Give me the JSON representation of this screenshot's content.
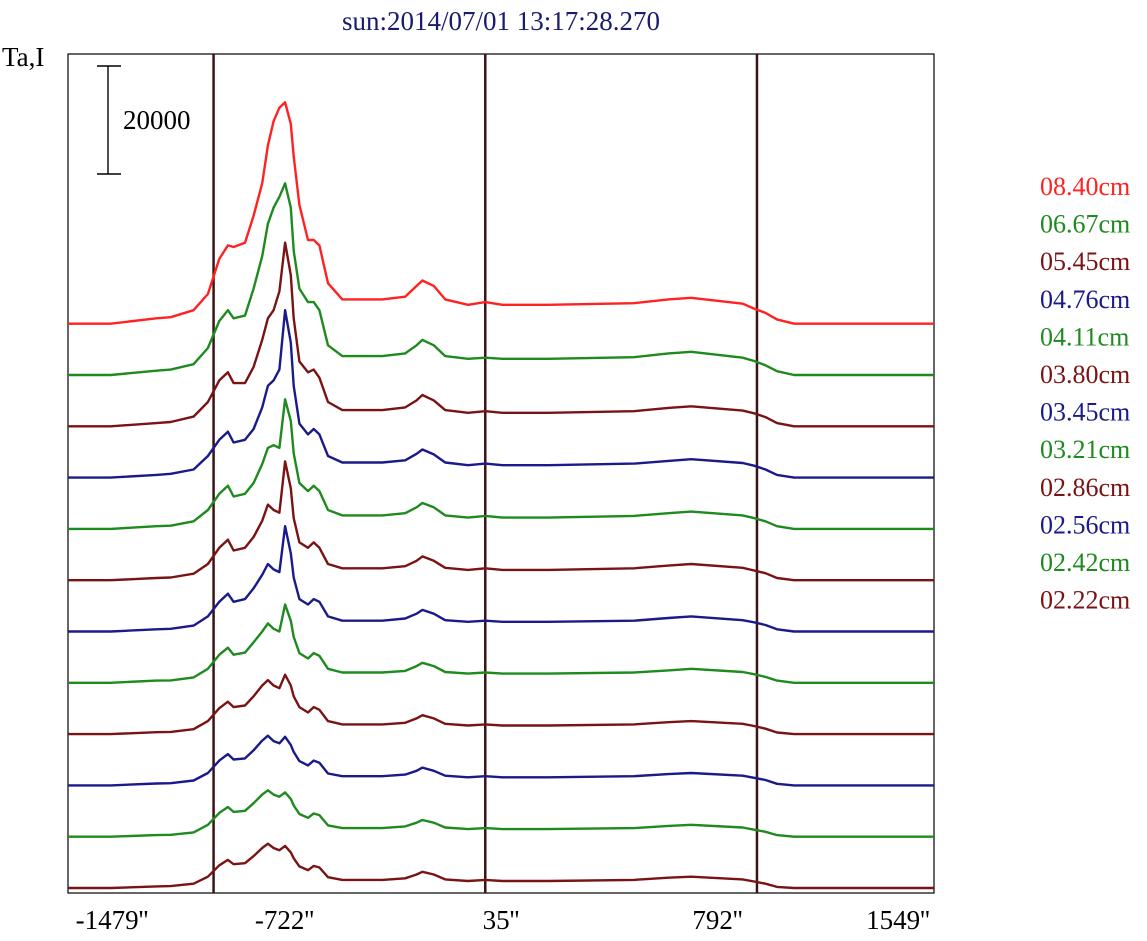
{
  "chart_data": {
    "type": "line",
    "title": "sun:2014/07/01 13:17:28.270",
    "ylabel": "Ta,I",
    "xlabel": "",
    "x_ticks": [
      "-1479''",
      "-722''",
      "35''",
      "792''",
      "1549''"
    ],
    "x_tick_values": [
      -1479,
      -722,
      35,
      792,
      1549
    ],
    "xlim": [
      -1479,
      1549
    ],
    "scale_bar_label": "20000",
    "scale_bar_value": 20000,
    "vertical_markers": [
      -970,
      -20,
      930
    ],
    "stack_offset": 6200,
    "ylim": [
      0,
      95000
    ],
    "series": [
      {
        "name": "08.40cm",
        "color": "#ff2222",
        "level": 11,
        "x": [
          -1479,
          -1330,
          -1170,
          -1120,
          -1040,
          -990,
          -950,
          -920,
          -900,
          -860,
          -830,
          -800,
          -780,
          -760,
          -740,
          -720,
          -700,
          -690,
          -670,
          -640,
          -620,
          -600,
          -570,
          -520,
          -470,
          -380,
          -300,
          -260,
          -240,
          -200,
          -160,
          -80,
          -20,
          40,
          200,
          500,
          620,
          700,
          880,
          920,
          960,
          1000,
          1060,
          1150,
          1549
        ],
        "y": [
          0,
          0,
          1000,
          1200,
          2500,
          5500,
          12000,
          14500,
          14200,
          15000,
          20000,
          26000,
          33000,
          37500,
          40000,
          41000,
          37000,
          31000,
          22000,
          15500,
          15500,
          14500,
          7500,
          4500,
          4500,
          4500,
          5000,
          7000,
          8000,
          7000,
          4500,
          3500,
          4000,
          3500,
          3500,
          3800,
          4500,
          4800,
          3700,
          2800,
          2000,
          800,
          0,
          0,
          0
        ]
      },
      {
        "name": "06.67cm",
        "color": "#1f8a1f",
        "level": 10,
        "x": [
          -1479,
          -1330,
          -1170,
          -1120,
          -1040,
          -990,
          -950,
          -920,
          -900,
          -860,
          -830,
          -800,
          -780,
          -760,
          -740,
          -720,
          -700,
          -690,
          -670,
          -640,
          -620,
          -600,
          -570,
          -520,
          -470,
          -380,
          -300,
          -260,
          -240,
          -200,
          -160,
          -80,
          -20,
          40,
          200,
          500,
          620,
          700,
          880,
          920,
          960,
          1000,
          1060,
          1150,
          1549
        ],
        "y": [
          0,
          0,
          800,
          1000,
          2000,
          5000,
          10000,
          12000,
          10500,
          11000,
          16000,
          22000,
          28000,
          31000,
          33000,
          35500,
          31000,
          23000,
          16000,
          13500,
          13500,
          12000,
          5500,
          3500,
          3500,
          3500,
          4000,
          5500,
          6500,
          5500,
          3500,
          3000,
          3200,
          3000,
          3000,
          3300,
          4000,
          4300,
          3200,
          2600,
          1800,
          700,
          0,
          0,
          0
        ]
      },
      {
        "name": "05.45cm",
        "color": "#7a1414",
        "level": 9,
        "x": [
          -1479,
          -1330,
          -1170,
          -1120,
          -1040,
          -990,
          -950,
          -920,
          -900,
          -860,
          -830,
          -800,
          -780,
          -760,
          -740,
          -720,
          -700,
          -690,
          -670,
          -640,
          -620,
          -600,
          -570,
          -520,
          -470,
          -380,
          -300,
          -260,
          -240,
          -200,
          -160,
          -80,
          -20,
          40,
          200,
          500,
          620,
          700,
          880,
          920,
          960,
          1000,
          1060,
          1150,
          1549
        ],
        "y": [
          0,
          0,
          600,
          800,
          1800,
          4500,
          8500,
          10000,
          8000,
          8000,
          11000,
          16000,
          20000,
          21500,
          25000,
          34000,
          28000,
          20000,
          12000,
          10000,
          10500,
          9000,
          4500,
          3000,
          3000,
          3000,
          3500,
          4800,
          5800,
          4800,
          3000,
          2500,
          2800,
          2500,
          2500,
          2800,
          3400,
          3700,
          2900,
          2400,
          1700,
          600,
          0,
          0,
          0
        ]
      },
      {
        "name": "04.76cm",
        "color": "#1a1a8a",
        "level": 8,
        "x": [
          -1479,
          -1330,
          -1170,
          -1120,
          -1040,
          -990,
          -950,
          -920,
          -900,
          -860,
          -830,
          -800,
          -780,
          -760,
          -740,
          -720,
          -700,
          -690,
          -670,
          -640,
          -620,
          -600,
          -570,
          -520,
          -470,
          -380,
          -300,
          -260,
          -240,
          -200,
          -160,
          -80,
          -20,
          40,
          200,
          500,
          620,
          700,
          880,
          920,
          960,
          1000,
          1060,
          1150,
          1549
        ],
        "y": [
          0,
          0,
          500,
          700,
          1500,
          4000,
          7000,
          8500,
          6500,
          7000,
          9000,
          13000,
          17000,
          18000,
          20000,
          31000,
          25000,
          17000,
          10000,
          8000,
          9000,
          8000,
          4000,
          2800,
          2800,
          2800,
          3200,
          4400,
          5200,
          4300,
          2800,
          2300,
          2600,
          2300,
          2300,
          2600,
          3100,
          3400,
          2700,
          2200,
          1500,
          500,
          0,
          0,
          0
        ]
      },
      {
        "name": "04.11cm",
        "color": "#1f8a1f",
        "level": 7,
        "x": [
          -1479,
          -1330,
          -1170,
          -1120,
          -1040,
          -990,
          -950,
          -920,
          -900,
          -860,
          -830,
          -800,
          -780,
          -760,
          -740,
          -720,
          -700,
          -690,
          -670,
          -640,
          -620,
          -600,
          -570,
          -520,
          -470,
          -380,
          -300,
          -260,
          -240,
          -200,
          -160,
          -80,
          -20,
          40,
          200,
          500,
          620,
          700,
          880,
          920,
          960,
          1000,
          1060,
          1150,
          1549
        ],
        "y": [
          0,
          0,
          500,
          600,
          1400,
          3500,
          6500,
          8000,
          6000,
          6500,
          8500,
          12000,
          15000,
          15500,
          15000,
          24000,
          20000,
          14000,
          8500,
          7000,
          8000,
          7000,
          3500,
          2500,
          2500,
          2500,
          2900,
          4000,
          4800,
          4000,
          2500,
          2100,
          2400,
          2100,
          2100,
          2400,
          2900,
          3200,
          2500,
          2000,
          1400,
          500,
          0,
          0,
          0
        ]
      },
      {
        "name": "03.80cm",
        "color": "#7a1414",
        "level": 6,
        "x": [
          -1479,
          -1330,
          -1170,
          -1120,
          -1040,
          -990,
          -950,
          -920,
          -900,
          -860,
          -830,
          -800,
          -780,
          -760,
          -740,
          -720,
          -700,
          -690,
          -670,
          -640,
          -620,
          -600,
          -570,
          -520,
          -470,
          -380,
          -300,
          -260,
          -240,
          -200,
          -160,
          -80,
          -20,
          40,
          200,
          500,
          620,
          700,
          880,
          920,
          960,
          1000,
          1060,
          1150,
          1549
        ],
        "y": [
          0,
          0,
          400,
          500,
          1200,
          3000,
          6000,
          7500,
          5500,
          6000,
          8000,
          11000,
          14000,
          13000,
          12500,
          22000,
          17000,
          11500,
          7000,
          6000,
          7000,
          6000,
          3000,
          2200,
          2200,
          2200,
          2600,
          3600,
          4400,
          3600,
          2300,
          1900,
          2200,
          1900,
          1900,
          2200,
          2700,
          3000,
          2300,
          1800,
          1300,
          400,
          0,
          0,
          0
        ]
      },
      {
        "name": "03.45cm",
        "color": "#1a1a8a",
        "level": 5,
        "x": [
          -1479,
          -1330,
          -1170,
          -1120,
          -1040,
          -990,
          -950,
          -920,
          -900,
          -860,
          -830,
          -800,
          -780,
          -760,
          -740,
          -720,
          -700,
          -690,
          -670,
          -640,
          -620,
          -600,
          -570,
          -520,
          -470,
          -380,
          -300,
          -260,
          -240,
          -200,
          -160,
          -80,
          -20,
          40,
          200,
          500,
          620,
          700,
          880,
          920,
          960,
          1000,
          1060,
          1150,
          1549
        ],
        "y": [
          0,
          0,
          400,
          500,
          1100,
          2800,
          5500,
          7000,
          5500,
          6000,
          8000,
          10500,
          12500,
          11500,
          11000,
          19500,
          14500,
          10000,
          6000,
          5000,
          6000,
          5500,
          2800,
          2000,
          2000,
          2000,
          2400,
          3300,
          4000,
          3300,
          2100,
          1800,
          2000,
          1800,
          1800,
          2000,
          2500,
          2800,
          2100,
          1700,
          1200,
          400,
          0,
          0,
          0
        ]
      },
      {
        "name": "03.21cm",
        "color": "#1f8a1f",
        "level": 4,
        "x": [
          -1479,
          -1330,
          -1170,
          -1120,
          -1040,
          -990,
          -950,
          -920,
          -900,
          -860,
          -830,
          -800,
          -780,
          -760,
          -740,
          -720,
          -700,
          -690,
          -670,
          -640,
          -620,
          -600,
          -570,
          -520,
          -470,
          -380,
          -300,
          -260,
          -240,
          -200,
          -160,
          -80,
          -20,
          40,
          200,
          500,
          620,
          700,
          880,
          920,
          960,
          1000,
          1060,
          1150,
          1549
        ],
        "y": [
          0,
          0,
          400,
          450,
          1000,
          2600,
          5200,
          6500,
          5200,
          5600,
          7500,
          9500,
          11000,
          10000,
          9500,
          14500,
          11500,
          8500,
          5500,
          4500,
          5500,
          5000,
          2600,
          1900,
          1900,
          1900,
          2200,
          3100,
          3700,
          3100,
          2000,
          1700,
          1900,
          1700,
          1700,
          1900,
          2300,
          2600,
          2000,
          1600,
          1100,
          400,
          0,
          0,
          0
        ]
      },
      {
        "name": "02.86cm",
        "color": "#7a1414",
        "level": 3,
        "x": [
          -1479,
          -1330,
          -1170,
          -1120,
          -1040,
          -990,
          -950,
          -920,
          -900,
          -860,
          -830,
          -800,
          -780,
          -760,
          -740,
          -720,
          -700,
          -690,
          -670,
          -640,
          -620,
          -600,
          -570,
          -520,
          -470,
          -380,
          -300,
          -260,
          -240,
          -200,
          -160,
          -80,
          -20,
          40,
          200,
          500,
          620,
          700,
          880,
          920,
          960,
          1000,
          1060,
          1150,
          1549
        ],
        "y": [
          0,
          0,
          350,
          400,
          900,
          2400,
          4800,
          6000,
          5000,
          5300,
          7000,
          9000,
          10000,
          9000,
          8500,
          11000,
          9000,
          7000,
          5000,
          4000,
          5000,
          4500,
          2400,
          1800,
          1800,
          1800,
          2100,
          2900,
          3500,
          2900,
          1900,
          1600,
          1800,
          1600,
          1600,
          1800,
          2200,
          2400,
          1900,
          1500,
          1000,
          300,
          0,
          0,
          0
        ]
      },
      {
        "name": "02.56cm",
        "color": "#1a1a8a",
        "level": 2,
        "x": [
          -1479,
          -1330,
          -1170,
          -1120,
          -1040,
          -990,
          -950,
          -920,
          -900,
          -860,
          -830,
          -800,
          -780,
          -760,
          -740,
          -720,
          -700,
          -690,
          -670,
          -640,
          -620,
          -600,
          -570,
          -520,
          -470,
          -380,
          -300,
          -260,
          -240,
          -200,
          -160,
          -80,
          -20,
          40,
          200,
          500,
          620,
          700,
          880,
          920,
          960,
          1000,
          1060,
          1150,
          1549
        ],
        "y": [
          0,
          0,
          350,
          400,
          900,
          2300,
          4600,
          5800,
          4800,
          5000,
          6500,
          8300,
          9200,
          8200,
          7800,
          9000,
          7500,
          6200,
          4500,
          3700,
          4600,
          4200,
          2200,
          1700,
          1700,
          1700,
          2000,
          2700,
          3300,
          2700,
          1800,
          1500,
          1700,
          1500,
          1500,
          1700,
          2100,
          2300,
          1800,
          1400,
          1000,
          300,
          0,
          0,
          0
        ]
      },
      {
        "name": "02.42cm",
        "color": "#1f8a1f",
        "level": 1,
        "x": [
          -1479,
          -1330,
          -1170,
          -1120,
          -1040,
          -990,
          -950,
          -920,
          -900,
          -860,
          -830,
          -800,
          -780,
          -760,
          -740,
          -720,
          -700,
          -690,
          -670,
          -640,
          -620,
          -600,
          -570,
          -520,
          -470,
          -380,
          -300,
          -260,
          -240,
          -200,
          -160,
          -80,
          -20,
          40,
          200,
          500,
          620,
          700,
          880,
          920,
          960,
          1000,
          1060,
          1150,
          1549
        ],
        "y": [
          0,
          0,
          300,
          350,
          800,
          2200,
          4400,
          5500,
          4600,
          4800,
          6200,
          7800,
          8600,
          7800,
          7400,
          8200,
          7000,
          5800,
          4200,
          3500,
          4300,
          4000,
          2100,
          1600,
          1600,
          1600,
          1900,
          2600,
          3100,
          2600,
          1700,
          1400,
          1600,
          1400,
          1400,
          1600,
          2000,
          2200,
          1700,
          1300,
          900,
          300,
          0,
          0,
          0
        ]
      },
      {
        "name": "02.22cm",
        "color": "#7a1414",
        "level": 0,
        "x": [
          -1479,
          -1330,
          -1170,
          -1120,
          -1040,
          -990,
          -950,
          -920,
          -900,
          -860,
          -830,
          -800,
          -780,
          -760,
          -740,
          -720,
          -700,
          -690,
          -670,
          -640,
          -620,
          -600,
          -570,
          -520,
          -470,
          -380,
          -300,
          -260,
          -240,
          -200,
          -160,
          -80,
          -20,
          40,
          200,
          500,
          620,
          700,
          880,
          920,
          960,
          1000,
          1060,
          1150,
          1549
        ],
        "y": [
          0,
          0,
          300,
          350,
          800,
          2100,
          4200,
          5200,
          4400,
          4600,
          5900,
          7400,
          8200,
          7400,
          7000,
          7800,
          6600,
          5500,
          4000,
          3300,
          4100,
          3800,
          2000,
          1500,
          1500,
          1500,
          1800,
          2500,
          3000,
          2500,
          1600,
          1300,
          1500,
          1300,
          1300,
          1500,
          1900,
          2100,
          1600,
          1200,
          800,
          200,
          0,
          0,
          0
        ]
      }
    ]
  }
}
